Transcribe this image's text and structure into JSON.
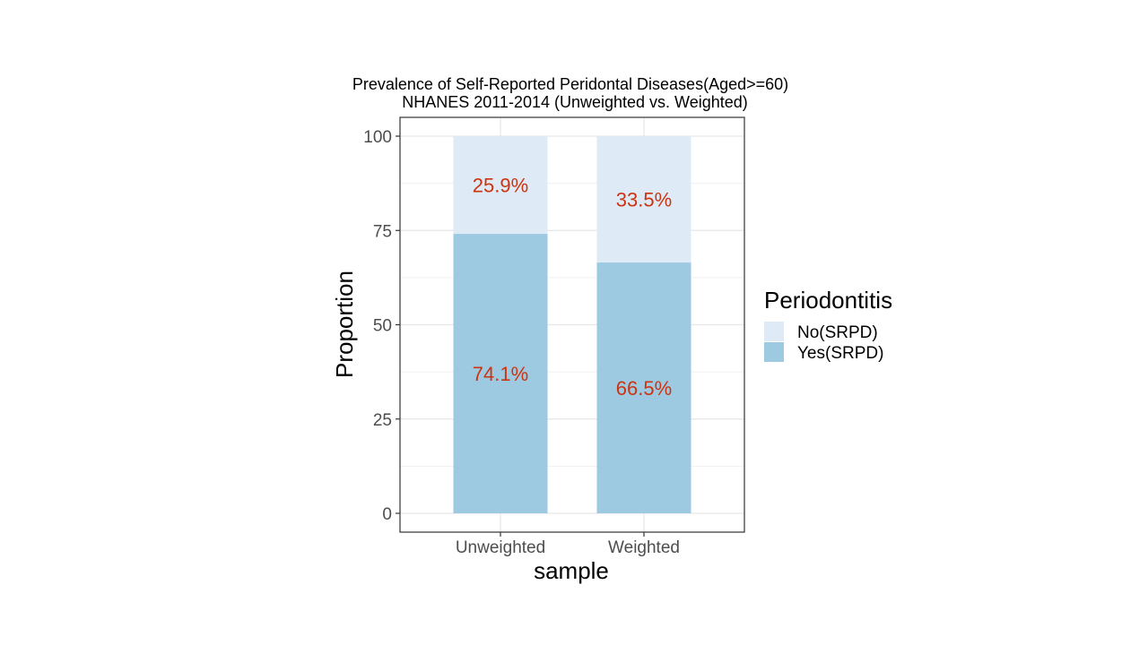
{
  "chart_data": {
    "type": "bar",
    "stacked": true,
    "title": "Prevalence of Self-Reported Peridontal Diseases(Aged>=60)",
    "subtitle": "NHANES 2011-2014 (Unweighted vs. Weighted)",
    "xlabel": "sample",
    "ylabel": "Proportion",
    "categories": [
      "Unweighted",
      "Weighted"
    ],
    "ylim": [
      -5,
      105
    ],
    "yticks": [
      0,
      25,
      50,
      75,
      100
    ],
    "grid": true,
    "series": [
      {
        "name": "Yes(SRPD)",
        "values": [
          74.1,
          66.5
        ],
        "labels": [
          "74.1%",
          "66.5%"
        ],
        "color": "#9ecae1"
      },
      {
        "name": "No(SRPD)",
        "values": [
          25.9,
          33.5
        ],
        "labels": [
          "25.9%",
          "33.5%"
        ],
        "color": "#deebf7"
      }
    ],
    "legend": {
      "title": "Periodontitis",
      "position": "right",
      "entries": [
        "No(SRPD)",
        "Yes(SRPD)"
      ]
    },
    "label_color": "#cc3311"
  }
}
